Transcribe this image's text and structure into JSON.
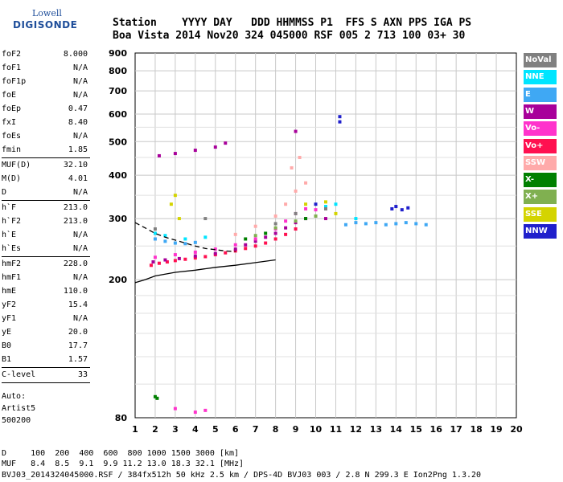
{
  "logo": {
    "line1": "Lowell",
    "line2": "DIGISONDE"
  },
  "header": {
    "labels": "Station    YYYY DAY   DDD HHMMSS P1  FFS S AXN PPS IGA PS",
    "values": "Boa Vista 2014 Nov20 324 045000 RSF 005 2 713 100 03+ 30"
  },
  "params": [
    {
      "name": "foF2",
      "value": "8.000"
    },
    {
      "name": "foF1",
      "value": "N/A"
    },
    {
      "name": "foF1p",
      "value": "N/A"
    },
    {
      "name": "foE",
      "value": "N/A"
    },
    {
      "name": "foEp",
      "value": "0.47"
    },
    {
      "name": "fxI",
      "value": "8.40"
    },
    {
      "name": "foEs",
      "value": "N/A"
    },
    {
      "name": "fmin",
      "value": "1.85",
      "divider_after": true
    },
    {
      "name": "MUF(D)",
      "value": "32.10"
    },
    {
      "name": "M(D)",
      "value": "4.01"
    },
    {
      "name": "D",
      "value": "N/A",
      "divider_after": true
    },
    {
      "name": "h`F",
      "value": "213.0"
    },
    {
      "name": "h`F2",
      "value": "213.0"
    },
    {
      "name": "h`E",
      "value": "N/A"
    },
    {
      "name": "h`Es",
      "value": "N/A",
      "divider_after": true
    },
    {
      "name": "hmF2",
      "value": "228.0"
    },
    {
      "name": "hmF1",
      "value": "N/A"
    },
    {
      "name": "hmE",
      "value": "110.0"
    },
    {
      "name": "yF2",
      "value": "15.4"
    },
    {
      "name": "yF1",
      "value": "N/A"
    },
    {
      "name": "yE",
      "value": "20.0"
    },
    {
      "name": "B0",
      "value": "17.7"
    },
    {
      "name": "B1",
      "value": "1.57",
      "divider_after": true
    },
    {
      "name": "C-level",
      "value": "33",
      "divider_after": true
    }
  ],
  "auto": {
    "line1": "Auto:",
    "line2": "Artist5",
    "line3": "500200"
  },
  "bottom": {
    "distance_row": "D     100  200  400  600  800 1000 1500 3000 [km]",
    "muf_row": "MUF   8.4  8.5  9.1  9.9 11.2 13.0 18.3 32.1 [MHz]",
    "footer": "BVJ03_2014324045000.RSF / 384fx512h 50 kHz 2.5 km / DPS-4D BVJ03 003 / 2.8 N 299.3 E Ion2Png 1.3.20"
  },
  "legend": [
    {
      "label": "NoVal",
      "color": "#808080"
    },
    {
      "label": "NNE",
      "color": "#00e5ff"
    },
    {
      "label": "E",
      "color": "#3fa8f4"
    },
    {
      "label": "W",
      "color": "#a8009a"
    },
    {
      "label": "Vo-",
      "color": "#ff33cc"
    },
    {
      "label": "Vo+",
      "color": "#ff1050"
    },
    {
      "label": "SSW",
      "color": "#ffaaaa"
    },
    {
      "label": "X-",
      "color": "#008000"
    },
    {
      "label": "X+",
      "color": "#80b050"
    },
    {
      "label": "SSE",
      "color": "#d4d400"
    },
    {
      "label": "NNW",
      "color": "#2020cc"
    }
  ],
  "chart_data": {
    "type": "scatter",
    "xlabel": "",
    "ylabel": "",
    "xlim": [
      1,
      20
    ],
    "ylim": [
      80,
      900
    ],
    "y_scale": "log",
    "x_ticks": [
      1,
      2,
      3,
      4,
      5,
      6,
      7,
      8,
      9,
      10,
      11,
      12,
      13,
      14,
      15,
      16,
      17,
      18,
      19,
      20
    ],
    "y_ticks": [
      80,
      200,
      300,
      400,
      500,
      600,
      700,
      800,
      900
    ],
    "grid": true,
    "series": [
      {
        "name": "Vo+",
        "color": "#ff1050",
        "points": [
          [
            1.8,
            220
          ],
          [
            2.2,
            223
          ],
          [
            2.6,
            225
          ],
          [
            3.0,
            227
          ],
          [
            3.5,
            229
          ],
          [
            4.0,
            231
          ],
          [
            4.5,
            233
          ],
          [
            5.0,
            236
          ],
          [
            5.5,
            239
          ],
          [
            6.0,
            242
          ],
          [
            6.5,
            246
          ],
          [
            7.0,
            250
          ],
          [
            7.5,
            255
          ],
          [
            8.0,
            262
          ],
          [
            8.5,
            270
          ],
          [
            9.0,
            280
          ]
        ]
      },
      {
        "name": "W",
        "color": "#a8009a",
        "points": [
          [
            1.9,
            225
          ],
          [
            2.5,
            228
          ],
          [
            3.2,
            230
          ],
          [
            4.0,
            234
          ],
          [
            5.0,
            238
          ],
          [
            6.0,
            245
          ],
          [
            6.5,
            252
          ],
          [
            7.0,
            258
          ],
          [
            7.5,
            265
          ],
          [
            8.0,
            272
          ],
          [
            8.5,
            282
          ],
          [
            9.0,
            292
          ],
          [
            9.5,
            300
          ],
          [
            10.0,
            305
          ],
          [
            10.5,
            300
          ],
          [
            2.2,
            455
          ],
          [
            3.0,
            462
          ],
          [
            4.0,
            472
          ],
          [
            5.0,
            482
          ],
          [
            5.5,
            495
          ],
          [
            9.0,
            535
          ]
        ]
      },
      {
        "name": "Vo-",
        "color": "#ff33cc",
        "points": [
          [
            2.0,
            232
          ],
          [
            3.0,
            236
          ],
          [
            4.0,
            240
          ],
          [
            5.0,
            245
          ],
          [
            6.0,
            252
          ],
          [
            7.0,
            262
          ],
          [
            8.0,
            280
          ],
          [
            8.5,
            295
          ],
          [
            9.0,
            310
          ],
          [
            9.5,
            320
          ],
          [
            10.0,
            318
          ],
          [
            3.0,
            85
          ],
          [
            4.5,
            84
          ],
          [
            4.0,
            83
          ]
        ]
      },
      {
        "name": "E",
        "color": "#3fa8f4",
        "points": [
          [
            2.0,
            262
          ],
          [
            2.5,
            258
          ],
          [
            3.0,
            255
          ],
          [
            3.5,
            254
          ],
          [
            4.0,
            256
          ],
          [
            11.5,
            288
          ],
          [
            12.0,
            292
          ],
          [
            12.5,
            290
          ],
          [
            13.0,
            292
          ],
          [
            13.5,
            288
          ],
          [
            14.0,
            290
          ],
          [
            14.5,
            292
          ],
          [
            15.0,
            290
          ],
          [
            15.5,
            288
          ]
        ]
      },
      {
        "name": "NNE",
        "color": "#00e5ff",
        "points": [
          [
            2.0,
            272
          ],
          [
            2.5,
            268
          ],
          [
            3.5,
            262
          ],
          [
            4.5,
            265
          ],
          [
            10.5,
            325
          ],
          [
            11.0,
            330
          ],
          [
            12.0,
            300
          ]
        ]
      },
      {
        "name": "SSW",
        "color": "#ffaaaa",
        "points": [
          [
            6.0,
            270
          ],
          [
            7.0,
            285
          ],
          [
            8.0,
            305
          ],
          [
            8.5,
            330
          ],
          [
            9.0,
            360
          ],
          [
            9.5,
            380
          ],
          [
            8.8,
            420
          ],
          [
            9.2,
            450
          ]
        ]
      },
      {
        "name": "X-",
        "color": "#008000",
        "points": [
          [
            2.0,
            92
          ],
          [
            2.1,
            91
          ],
          [
            6.5,
            262
          ],
          [
            7.5,
            272
          ],
          [
            9.5,
            300
          ]
        ]
      },
      {
        "name": "X+",
        "color": "#80b050",
        "points": [
          [
            7.0,
            268
          ],
          [
            8.0,
            282
          ],
          [
            9.0,
            295
          ],
          [
            10.0,
            305
          ]
        ]
      },
      {
        "name": "SSE",
        "color": "#d4d400",
        "points": [
          [
            2.8,
            330
          ],
          [
            3.0,
            350
          ],
          [
            3.2,
            300
          ],
          [
            9.5,
            330
          ],
          [
            10.5,
            335
          ],
          [
            11.0,
            310
          ]
        ]
      },
      {
        "name": "NNW",
        "color": "#2020cc",
        "points": [
          [
            13.8,
            320
          ],
          [
            14.0,
            325
          ],
          [
            14.3,
            318
          ],
          [
            14.6,
            322
          ],
          [
            11.2,
            590
          ],
          [
            11.2,
            570
          ],
          [
            10.0,
            330
          ]
        ]
      },
      {
        "name": "NoVal",
        "color": "#808080",
        "points": [
          [
            2.0,
            280
          ],
          [
            4.5,
            300
          ],
          [
            8.0,
            290
          ],
          [
            9.0,
            310
          ],
          [
            10.5,
            320
          ]
        ]
      }
    ],
    "profile_curve": {
      "color": "#000000",
      "points": [
        [
          1.0,
          196
        ],
        [
          1.5,
          200
        ],
        [
          2.0,
          205
        ],
        [
          3.0,
          210
        ],
        [
          4.0,
          213
        ],
        [
          5.0,
          217
        ],
        [
          6.0,
          220
        ],
        [
          7.0,
          224
        ],
        [
          8.0,
          228
        ]
      ]
    },
    "o_trace_curve": {
      "color": "#000000",
      "dash": true,
      "points": [
        [
          1.0,
          292
        ],
        [
          1.5,
          282
        ],
        [
          2.0,
          272
        ],
        [
          2.5,
          265
        ],
        [
          3.0,
          260
        ],
        [
          3.5,
          255
        ],
        [
          4.0,
          250
        ],
        [
          4.5,
          246
        ],
        [
          5.0,
          244
        ],
        [
          5.5,
          242
        ],
        [
          6.0,
          241
        ]
      ]
    }
  }
}
